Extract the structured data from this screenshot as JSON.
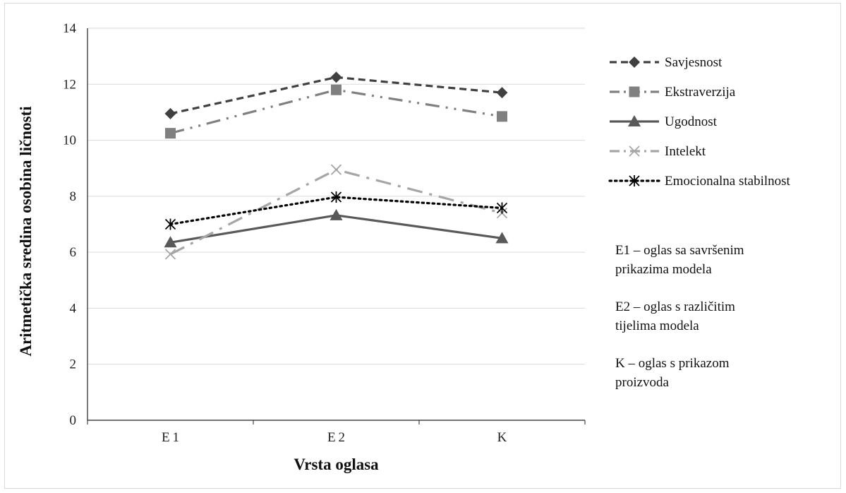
{
  "chart_data": {
    "type": "line",
    "title": "",
    "xlabel": "Vrsta oglasa",
    "ylabel": "Aritmetička sredina osobina ličnosti",
    "categories": [
      "E1",
      "E2",
      "K"
    ],
    "ylim": [
      0,
      14
    ],
    "yticks": [
      0,
      2,
      4,
      6,
      8,
      10,
      12,
      14
    ],
    "grid": true,
    "legend_position": "right",
    "series": [
      {
        "name": "Savjesnost",
        "values": [
          10.95,
          12.25,
          11.7
        ],
        "color": "#404040",
        "dash": "dashed",
        "marker": "diamond"
      },
      {
        "name": "Ekstraverzija",
        "values": [
          10.25,
          11.8,
          10.85
        ],
        "color": "#808080",
        "dash": "dash-dot-dot",
        "marker": "square"
      },
      {
        "name": "Ugodnost",
        "values": [
          6.35,
          7.32,
          6.5
        ],
        "color": "#595959",
        "dash": "solid",
        "marker": "triangle"
      },
      {
        "name": "Intelekt",
        "values": [
          5.93,
          8.95,
          7.4
        ],
        "color": "#a6a6a6",
        "dash": "long-dash-dot",
        "marker": "x"
      },
      {
        "name": "Emocionalna stabilnost",
        "values": [
          7.0,
          7.97,
          7.58
        ],
        "color": "#000000",
        "dash": "dotted",
        "marker": "star"
      }
    ],
    "notes": [
      [
        "E1 – oglas sa savršenim",
        "prikazima modela"
      ],
      [
        "E2 – oglas s različitim",
        "tijelima modela"
      ],
      [
        "K – oglas s prikazom",
        "proizvoda"
      ]
    ]
  }
}
